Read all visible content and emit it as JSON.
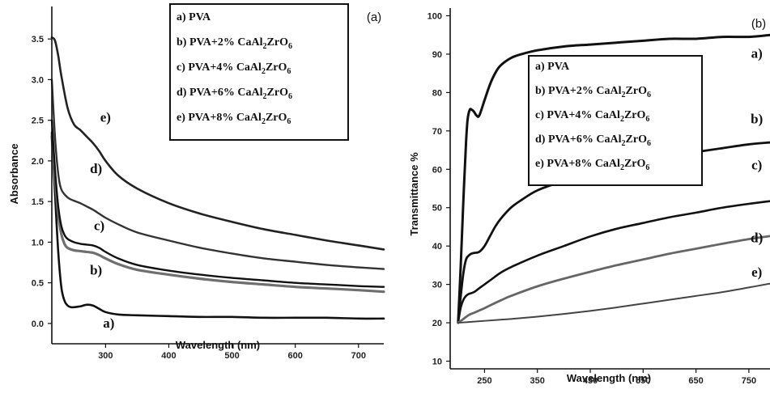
{
  "chart_data": [
    {
      "type": "line",
      "panel_label": "(a)",
      "xlabel": "Wavelength (nm)",
      "ylabel": "Absorbance",
      "xlim": [
        215,
        740
      ],
      "ylim": [
        -0.25,
        3.9
      ],
      "xticks": [
        300,
        400,
        500,
        600,
        700
      ],
      "yticks": [
        0.0,
        0.5,
        1.0,
        1.5,
        2.0,
        2.5,
        3.0,
        3.5
      ],
      "grid": false,
      "legend": {
        "position": "top-right",
        "entries": [
          {
            "id": "a",
            "prefix": "a)",
            "text": "PVA",
            "sub": ""
          },
          {
            "id": "b",
            "prefix": "b)",
            "text": "PVA+2% CaAl",
            "sub": "2",
            "tail": "ZrO",
            "sub2": "6"
          },
          {
            "id": "c",
            "prefix": "c)",
            "text": "PVA+4% CaAl",
            "sub": "2",
            "tail": "ZrO",
            "sub2": "6"
          },
          {
            "id": "d",
            "prefix": "d)",
            "text": "PVA+6% CaAl",
            "sub": "2",
            "tail": "ZrO",
            "sub2": "6"
          },
          {
            "id": "e",
            "prefix": "e)",
            "text": "PVA+8% CaAl",
            "sub": "2",
            "tail": "ZrO",
            "sub2": "6"
          }
        ]
      },
      "curve_labels": [
        {
          "text": "a)",
          "x": 305,
          "y": -0.05
        },
        {
          "text": "b)",
          "x": 285,
          "y": 0.6
        },
        {
          "text": "c)",
          "x": 290,
          "y": 1.15
        },
        {
          "text": "d)",
          "x": 285,
          "y": 1.85
        },
        {
          "text": "e)",
          "x": 300,
          "y": 2.48
        }
      ],
      "series": [
        {
          "id": "a",
          "color": "#111111",
          "width": 2.6,
          "x": [
            215,
            220,
            225,
            230,
            235,
            240,
            245,
            250,
            260,
            270,
            280,
            290,
            300,
            320,
            350,
            400,
            450,
            500,
            550,
            600,
            650,
            700,
            740
          ],
          "y": [
            2.35,
            1.6,
            0.9,
            0.45,
            0.28,
            0.22,
            0.2,
            0.2,
            0.21,
            0.23,
            0.22,
            0.18,
            0.14,
            0.11,
            0.1,
            0.09,
            0.08,
            0.08,
            0.07,
            0.07,
            0.07,
            0.06,
            0.06
          ]
        },
        {
          "id": "b",
          "color": "#6f6f6f",
          "width": 3.2,
          "x": [
            215,
            220,
            225,
            230,
            235,
            240,
            250,
            260,
            270,
            280,
            290,
            300,
            320,
            350,
            400,
            450,
            500,
            550,
            600,
            650,
            700,
            740
          ],
          "y": [
            2.3,
            1.8,
            1.35,
            1.1,
            0.98,
            0.93,
            0.9,
            0.89,
            0.88,
            0.87,
            0.84,
            0.8,
            0.73,
            0.66,
            0.6,
            0.55,
            0.51,
            0.48,
            0.45,
            0.43,
            0.41,
            0.39
          ]
        },
        {
          "id": "c",
          "color": "#111111",
          "width": 2.4,
          "x": [
            215,
            220,
            225,
            230,
            235,
            240,
            250,
            260,
            270,
            280,
            290,
            300,
            320,
            350,
            400,
            450,
            500,
            550,
            600,
            650,
            700,
            740
          ],
          "y": [
            2.5,
            1.9,
            1.45,
            1.2,
            1.09,
            1.04,
            1.0,
            0.98,
            0.97,
            0.96,
            0.93,
            0.88,
            0.8,
            0.72,
            0.65,
            0.6,
            0.56,
            0.53,
            0.5,
            0.48,
            0.46,
            0.45
          ]
        },
        {
          "id": "d",
          "color": "#333333",
          "width": 2.4,
          "x": [
            215,
            220,
            225,
            230,
            240,
            250,
            260,
            270,
            280,
            290,
            300,
            320,
            350,
            400,
            450,
            500,
            550,
            600,
            650,
            700,
            740
          ],
          "y": [
            3.0,
            2.3,
            1.85,
            1.65,
            1.55,
            1.51,
            1.48,
            1.44,
            1.4,
            1.35,
            1.3,
            1.22,
            1.12,
            1.02,
            0.93,
            0.86,
            0.8,
            0.76,
            0.72,
            0.69,
            0.67
          ]
        },
        {
          "id": "e",
          "color": "#222222",
          "width": 2.6,
          "x": [
            215,
            220,
            225,
            230,
            240,
            250,
            260,
            270,
            280,
            290,
            300,
            320,
            350,
            400,
            450,
            500,
            550,
            600,
            650,
            700,
            740
          ],
          "y": [
            3.52,
            3.48,
            3.3,
            3.05,
            2.65,
            2.45,
            2.38,
            2.3,
            2.22,
            2.12,
            2.0,
            1.82,
            1.66,
            1.48,
            1.35,
            1.25,
            1.16,
            1.09,
            1.02,
            0.96,
            0.91
          ]
        }
      ]
    },
    {
      "type": "line",
      "panel_label": "(b)",
      "xlabel": "Wavelength (nm)",
      "ylabel": "Transmittance %",
      "xlim": [
        185,
        790
      ],
      "ylim": [
        8,
        102
      ],
      "xticks": [
        250,
        350,
        450,
        550,
        650,
        750
      ],
      "yticks": [
        10,
        20,
        30,
        40,
        50,
        60,
        70,
        80,
        90,
        100
      ],
      "grid": false,
      "legend": {
        "position": "upper-middle",
        "entries": [
          {
            "id": "a",
            "prefix": "a)",
            "text": "PVA",
            "sub": ""
          },
          {
            "id": "b",
            "prefix": "b)",
            "text": "PVA+2% CaAl",
            "sub": "2",
            "tail": "ZrO",
            "sub2": "6"
          },
          {
            "id": "c",
            "prefix": "c)",
            "text": "PVA+4% CaAl",
            "sub": "2",
            "tail": "ZrO",
            "sub2": "6"
          },
          {
            "id": "d",
            "prefix": "d)",
            "text": "PVA+6% CaAl",
            "sub": "2",
            "tail": "ZrO",
            "sub2": "6"
          },
          {
            "id": "e",
            "prefix": "e)",
            "text": "PVA+8% CaAl",
            "sub": "2",
            "tail": "ZrO",
            "sub2": "6"
          }
        ]
      },
      "curve_labels": [
        {
          "text": "a)",
          "x": 765,
          "y": 89
        },
        {
          "text": "b)",
          "x": 765,
          "y": 72
        },
        {
          "text": "c)",
          "x": 765,
          "y": 60
        },
        {
          "text": "d)",
          "x": 765,
          "y": 41
        },
        {
          "text": "e)",
          "x": 765,
          "y": 32
        }
      ],
      "series": [
        {
          "id": "a",
          "color": "#111111",
          "width": 3.0,
          "x": [
            200,
            205,
            210,
            215,
            218,
            222,
            226,
            230,
            235,
            240,
            250,
            260,
            270,
            280,
            300,
            320,
            350,
            400,
            450,
            500,
            550,
            600,
            650,
            700,
            750,
            790
          ],
          "y": [
            20,
            35,
            52,
            67,
            73,
            75.5,
            75.5,
            75,
            74,
            74,
            78,
            82,
            85,
            87,
            89,
            90,
            91,
            92,
            92.5,
            93,
            93.5,
            94,
            94,
            94.5,
            94.5,
            95
          ]
        },
        {
          "id": "b",
          "color": "#111111",
          "width": 2.8,
          "x": [
            200,
            205,
            210,
            215,
            220,
            225,
            230,
            240,
            250,
            260,
            270,
            280,
            300,
            320,
            350,
            400,
            450,
            500,
            550,
            600,
            650,
            700,
            750,
            790
          ],
          "y": [
            20,
            27,
            33,
            36.5,
            37.5,
            38,
            38.2,
            38.5,
            40,
            42.5,
            45,
            47,
            50,
            52,
            54.5,
            57,
            59,
            60.5,
            62,
            63.5,
            64.5,
            65.5,
            66.5,
            67
          ]
        },
        {
          "id": "c",
          "color": "#111111",
          "width": 2.6,
          "x": [
            200,
            205,
            210,
            215,
            220,
            230,
            240,
            250,
            260,
            280,
            300,
            350,
            400,
            450,
            500,
            550,
            600,
            650,
            700,
            750,
            790
          ],
          "y": [
            20,
            24,
            26,
            27,
            27.5,
            28,
            29,
            30,
            31,
            33,
            34.5,
            37.5,
            40,
            42.5,
            44.5,
            46,
            47.5,
            48.7,
            50,
            51,
            51.7
          ]
        },
        {
          "id": "d",
          "color": "#666666",
          "width": 2.8,
          "x": [
            200,
            210,
            220,
            230,
            240,
            250,
            260,
            280,
            300,
            350,
            400,
            450,
            500,
            550,
            600,
            650,
            700,
            750,
            790
          ],
          "y": [
            20,
            21,
            22,
            22.6,
            23.2,
            23.8,
            24.5,
            25.8,
            27,
            29.5,
            31.5,
            33.3,
            35,
            36.5,
            38,
            39.3,
            40.6,
            41.8,
            42.6
          ]
        },
        {
          "id": "e",
          "color": "#444444",
          "width": 2.0,
          "x": [
            200,
            220,
            250,
            300,
            350,
            400,
            450,
            500,
            550,
            600,
            650,
            700,
            750,
            790
          ],
          "y": [
            20,
            20.2,
            20.5,
            21,
            21.6,
            22.3,
            23.1,
            24,
            25,
            26,
            27,
            28,
            29.2,
            30.2
          ]
        }
      ]
    }
  ]
}
